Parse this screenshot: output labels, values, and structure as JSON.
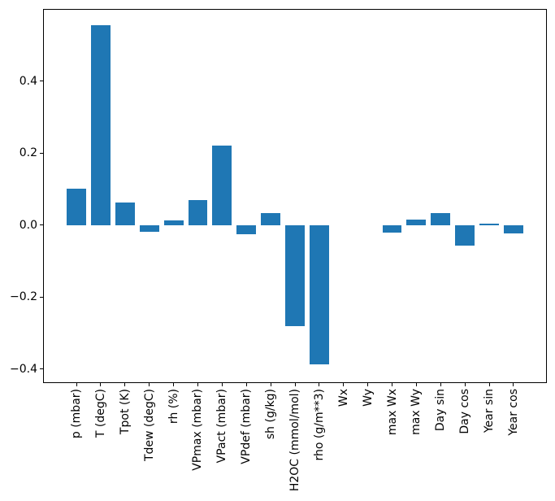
{
  "chart_data": {
    "type": "bar",
    "title": "",
    "xlabel": "",
    "ylabel": "",
    "categories": [
      "p (mbar)",
      "T (degC)",
      "Tpot (K)",
      "Tdew (degC)",
      "rh (%)",
      "VPmax (mbar)",
      "VPact (mbar)",
      "VPdef (mbar)",
      "sh (g/kg)",
      "H2OC (mmol/mol)",
      "rho (g/m**3)",
      "Wx",
      "Wy",
      "max Wx",
      "max Wy",
      "Day sin",
      "Day cos",
      "Year sin",
      "Year cos"
    ],
    "values": [
      0.1,
      0.555,
      0.063,
      -0.02,
      0.012,
      0.069,
      0.22,
      -0.025,
      0.034,
      -0.28,
      -0.388,
      0.0,
      0.0,
      -0.022,
      0.016,
      0.034,
      -0.058,
      0.004,
      -0.023
    ],
    "bar_color": "#1f77b4",
    "axis_color": "#000000",
    "yticks": [
      0.4,
      0.2,
      0.0,
      -0.2,
      -0.4
    ],
    "ytick_labels": [
      "0.4",
      "0.2",
      "0.0",
      "−0.2",
      "−0.4"
    ],
    "ylim": [
      -0.437,
      0.598
    ],
    "xlim": [
      -1.34,
      19.34
    ],
    "bar_width_units": 0.8,
    "x_tick_label_rotation": 90,
    "grid": false,
    "legend": false
  }
}
